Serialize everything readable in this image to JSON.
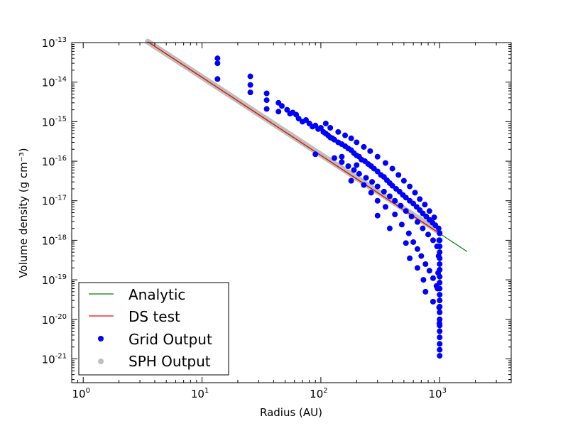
{
  "chart_data": {
    "type": "scatter",
    "title": "",
    "xlabel": "Radius (AU)",
    "ylabel": "Volume density (g cm⁻³)",
    "xscale": "log",
    "yscale": "log",
    "xlim": [
      0.8,
      4000
    ],
    "ylim": [
      2.5e-22,
      1e-13
    ],
    "x_ticks": [
      {
        "base": "10",
        "exp": "0"
      },
      {
        "base": "10",
        "exp": "1"
      },
      {
        "base": "10",
        "exp": "2"
      },
      {
        "base": "10",
        "exp": "3"
      }
    ],
    "y_ticks": [
      {
        "base": "10",
        "exp": "-13"
      },
      {
        "base": "10",
        "exp": "-14"
      },
      {
        "base": "10",
        "exp": "-15"
      },
      {
        "base": "10",
        "exp": "-16"
      },
      {
        "base": "10",
        "exp": "-17"
      },
      {
        "base": "10",
        "exp": "-18"
      },
      {
        "base": "10",
        "exp": "-19"
      },
      {
        "base": "10",
        "exp": "-20"
      },
      {
        "base": "10",
        "exp": "-21"
      }
    ],
    "grid": false,
    "legend_position": "lower-left",
    "series": [
      {
        "name": "Analytic",
        "kind": "line",
        "color": "#008000",
        "x": [
          3.5,
          1700
        ],
        "y": [
          1.05e-13,
          5.2e-19
        ]
      },
      {
        "name": "DS test",
        "kind": "line",
        "color": "#ff0000",
        "x": [
          3.5,
          1000
        ],
        "y": [
          1.05e-13,
          1.5e-18
        ]
      },
      {
        "name": "Grid Output",
        "kind": "scatter",
        "color": "#0000ff",
        "points": [
          [
            13.5,
            4e-14
          ],
          [
            13.5,
            3e-14
          ],
          [
            13.5,
            1.2e-14
          ],
          [
            25.5,
            1.4e-14
          ],
          [
            25.5,
            8.5e-15
          ],
          [
            25.5,
            5.5e-15
          ],
          [
            35,
            5.2e-15
          ],
          [
            35,
            3.5e-15
          ],
          [
            35,
            2.1e-15
          ],
          [
            44,
            3e-15
          ],
          [
            44,
            1.8e-15
          ],
          [
            47,
            2.5e-15
          ],
          [
            52,
            2e-15
          ],
          [
            55,
            1.6e-15
          ],
          [
            58,
            1.7e-15
          ],
          [
            62,
            1.5e-15
          ],
          [
            65,
            1.2e-15
          ],
          [
            70,
            1e-15
          ],
          [
            75,
            1.1e-15
          ],
          [
            80,
            9e-16
          ],
          [
            85,
            7.5e-16
          ],
          [
            90,
            8e-16
          ],
          [
            95,
            6.5e-16
          ],
          [
            100,
            7e-16
          ],
          [
            105,
            5.5e-16
          ],
          [
            110,
            5e-16
          ],
          [
            115,
            4.5e-16
          ],
          [
            120,
            4e-16
          ],
          [
            125,
            3.8e-16
          ],
          [
            130,
            3.5e-16
          ],
          [
            140,
            3e-16
          ],
          [
            150,
            2.7e-16
          ],
          [
            160,
            2.4e-16
          ],
          [
            170,
            2.1e-16
          ],
          [
            180,
            1.9e-16
          ],
          [
            190,
            1.6e-16
          ],
          [
            200,
            1.4e-16
          ],
          [
            210,
            1.3e-16
          ],
          [
            220,
            1.1e-16
          ],
          [
            235,
            1e-16
          ],
          [
            250,
            8.5e-17
          ],
          [
            265,
            7.5e-17
          ],
          [
            280,
            6.5e-17
          ],
          [
            300,
            5.5e-17
          ],
          [
            320,
            4.5e-17
          ],
          [
            340,
            4e-17
          ],
          [
            360,
            3.3e-17
          ],
          [
            380,
            2.8e-17
          ],
          [
            400,
            2.4e-17
          ],
          [
            430,
            2e-17
          ],
          [
            460,
            1.7e-17
          ],
          [
            490,
            1.4e-17
          ],
          [
            520,
            1.2e-17
          ],
          [
            560,
            1e-17
          ],
          [
            600,
            8.5e-18
          ],
          [
            640,
            7e-18
          ],
          [
            680,
            5.8e-18
          ],
          [
            720,
            4.8e-18
          ],
          [
            770,
            4e-18
          ],
          [
            820,
            3.3e-18
          ],
          [
            870,
            2.8e-18
          ],
          [
            920,
            2.4e-18
          ],
          [
            980,
            2e-18
          ],
          [
            110,
            9e-16
          ],
          [
            120,
            7e-16
          ],
          [
            140,
            5.5e-16
          ],
          [
            160,
            4.5e-16
          ],
          [
            180,
            3.8e-16
          ],
          [
            200,
            3e-16
          ],
          [
            230,
            2.3e-16
          ],
          [
            260,
            1.8e-16
          ],
          [
            300,
            1.3e-16
          ],
          [
            350,
            9e-17
          ],
          [
            400,
            6.5e-17
          ],
          [
            450,
            4.5e-17
          ],
          [
            500,
            3.2e-17
          ],
          [
            560,
            2.3e-17
          ],
          [
            620,
            1.6e-17
          ],
          [
            680,
            1.1e-17
          ],
          [
            750,
            8e-18
          ],
          [
            820,
            5.5e-18
          ],
          [
            900,
            3.8e-18
          ],
          [
            130,
            1.2e-16
          ],
          [
            150,
            9.5e-17
          ],
          [
            170,
            7.5e-17
          ],
          [
            190,
            6e-17
          ],
          [
            210,
            4.8e-17
          ],
          [
            240,
            3.8e-17
          ],
          [
            270,
            3e-17
          ],
          [
            300,
            2.3e-17
          ],
          [
            340,
            1.7e-17
          ],
          [
            380,
            1.3e-17
          ],
          [
            420,
            1e-17
          ],
          [
            470,
            7.5e-18
          ],
          [
            520,
            5.5e-18
          ],
          [
            580,
            4e-18
          ],
          [
            650,
            2.9e-18
          ],
          [
            720,
            2e-18
          ],
          [
            800,
            1.4e-18
          ],
          [
            880,
            1e-18
          ],
          [
            950,
            7e-19
          ],
          [
            90,
            1.5e-16
          ],
          [
            150,
            1.3e-16
          ],
          [
            180,
            3.2e-17
          ],
          [
            230,
            2.5e-17
          ],
          [
            265,
            1.6e-17
          ],
          [
            300,
            1e-17
          ],
          [
            350,
            7e-18
          ],
          [
            420,
            4.5e-18
          ],
          [
            480,
            2.5e-18
          ],
          [
            550,
            1.5e-18
          ],
          [
            600,
            9e-19
          ],
          [
            650,
            6e-19
          ],
          [
            700,
            4e-19
          ],
          [
            760,
            2.5e-19
          ],
          [
            820,
            1.7e-19
          ],
          [
            880,
            1.1e-19
          ],
          [
            940,
            7e-20
          ],
          [
            300,
            4.2e-18
          ],
          [
            380,
            2e-18
          ],
          [
            520,
            8.5e-19
          ],
          [
            560,
            3.5e-19
          ],
          [
            650,
            2e-19
          ],
          [
            730,
            1e-19
          ],
          [
            760,
            5e-20
          ],
          [
            880,
            2.8e-20
          ],
          [
            200,
            8e-17
          ],
          [
            1000,
            1.5e-18
          ],
          [
            1000,
            1e-18
          ],
          [
            1000,
            7e-19
          ],
          [
            1000,
            5e-19
          ],
          [
            1000,
            3.5e-19
          ],
          [
            1000,
            2.5e-19
          ],
          [
            1000,
            1.8e-19
          ],
          [
            1000,
            1.2e-19
          ],
          [
            1000,
            8.5e-20
          ],
          [
            1000,
            6e-20
          ],
          [
            1000,
            4.2e-20
          ],
          [
            1000,
            3e-20
          ],
          [
            1000,
            2.1e-20
          ],
          [
            1000,
            1.5e-20
          ],
          [
            1000,
            1e-20
          ],
          [
            1000,
            7e-21
          ],
          [
            1000,
            5e-21
          ],
          [
            1000,
            3.5e-21
          ],
          [
            1000,
            2.4e-21
          ],
          [
            1000,
            1.7e-21
          ],
          [
            1000,
            1.2e-21
          ],
          [
            990,
            1e-18
          ],
          [
            980,
            4e-19
          ],
          [
            970,
            1.5e-19
          ],
          [
            960,
            6e-20
          ],
          [
            990,
            2e-20
          ],
          [
            995,
            8e-21
          ]
        ]
      },
      {
        "name": "SPH Output",
        "kind": "scatter",
        "color": "#bfbfbf",
        "x_range": [
          3.5,
          1000
        ],
        "y_at_x_min": 1.05e-13,
        "y_at_x_max": 1.6e-18
      }
    ]
  }
}
